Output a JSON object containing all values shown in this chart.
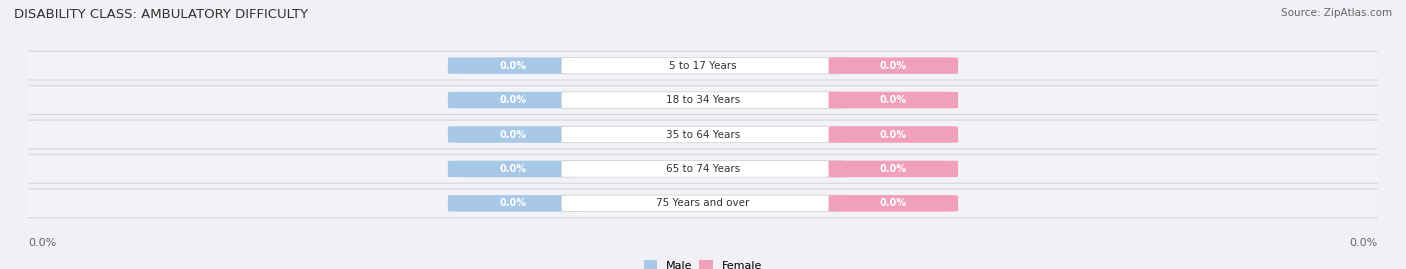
{
  "title": "DISABILITY CLASS: AMBULATORY DIFFICULTY",
  "source": "Source: ZipAtlas.com",
  "categories": [
    "5 to 17 Years",
    "18 to 34 Years",
    "35 to 64 Years",
    "65 to 74 Years",
    "75 Years and over"
  ],
  "male_values": [
    0.0,
    0.0,
    0.0,
    0.0,
    0.0
  ],
  "female_values": [
    0.0,
    0.0,
    0.0,
    0.0,
    0.0
  ],
  "male_color": "#a8c8e8",
  "female_color": "#f0a0b8",
  "male_label": "Male",
  "female_label": "Female",
  "row_bg_color": "#e8e8f0",
  "row_inner_color": "#f5f5f8",
  "x_left_label": "0.0%",
  "x_right_label": "0.0%",
  "title_fontsize": 9.5,
  "source_fontsize": 7.5,
  "label_fontsize": 8,
  "category_fontsize": 7.5,
  "bar_value_fontsize": 7,
  "background_color": "#f0f0f5"
}
